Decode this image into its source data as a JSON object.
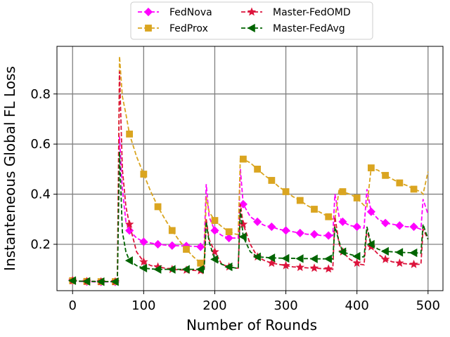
{
  "chart_data": {
    "type": "line",
    "title": "",
    "xlabel": "Number of Rounds",
    "ylabel": "Instanteneous Global FL Loss",
    "xlim": [
      -22,
      521
    ],
    "ylim": [
      0.015,
      0.99
    ],
    "xticks": [
      0,
      100,
      200,
      300,
      400,
      500
    ],
    "yticks": [
      0.2,
      0.4,
      0.6,
      0.8
    ],
    "xtick_labels": [
      "0",
      "100",
      "200",
      "300",
      "400",
      "500"
    ],
    "ytick_labels": [
      "0.2",
      "0.4",
      "0.6",
      "0.8"
    ],
    "grid": true,
    "legend": {
      "placement": "top-center",
      "ncol": 2
    },
    "series": [
      {
        "name": "FedNova",
        "color": "#ff00ff",
        "marker": "diamond",
        "dashed": true,
        "x": [
          0,
          5,
          10,
          15,
          20,
          25,
          30,
          35,
          40,
          45,
          50,
          55,
          60,
          63,
          66,
          70,
          75,
          80,
          90,
          100,
          110,
          120,
          130,
          140,
          150,
          160,
          170,
          180,
          185,
          188,
          192,
          200,
          210,
          220,
          230,
          233,
          236,
          240,
          250,
          260,
          270,
          280,
          290,
          300,
          310,
          320,
          330,
          340,
          350,
          360,
          366,
          369,
          375,
          380,
          390,
          400,
          405,
          410,
          414,
          420,
          430,
          440,
          450,
          460,
          470,
          480,
          490,
          493,
          500
        ],
        "y": [
          0.055,
          0.053,
          0.052,
          0.052,
          0.051,
          0.051,
          0.05,
          0.05,
          0.05,
          0.05,
          0.05,
          0.05,
          0.05,
          0.05,
          0.63,
          0.42,
          0.29,
          0.255,
          0.225,
          0.21,
          0.205,
          0.2,
          0.197,
          0.195,
          0.194,
          0.193,
          0.192,
          0.19,
          0.19,
          0.44,
          0.31,
          0.255,
          0.235,
          0.225,
          0.225,
          0.225,
          0.5,
          0.36,
          0.31,
          0.29,
          0.275,
          0.27,
          0.26,
          0.255,
          0.25,
          0.245,
          0.24,
          0.24,
          0.235,
          0.235,
          0.235,
          0.4,
          0.31,
          0.29,
          0.275,
          0.27,
          0.265,
          0.265,
          0.42,
          0.33,
          0.3,
          0.285,
          0.28,
          0.275,
          0.27,
          0.27,
          0.26,
          0.38,
          0.32
        ],
        "marker_x": [
          0,
          20,
          40,
          60,
          80,
          100,
          120,
          140,
          160,
          180,
          200,
          220,
          240,
          260,
          280,
          300,
          320,
          340,
          360,
          380,
          400,
          420,
          440,
          460,
          480
        ]
      },
      {
        "name": "FedProx",
        "color": "#daa520",
        "marker": "square",
        "dashed": true,
        "x": [
          0,
          10,
          20,
          30,
          40,
          50,
          60,
          63,
          66,
          70,
          75,
          80,
          90,
          100,
          110,
          120,
          130,
          140,
          150,
          160,
          170,
          180,
          185,
          188,
          192,
          200,
          210,
          220,
          230,
          233,
          236,
          240,
          250,
          260,
          270,
          280,
          290,
          300,
          310,
          320,
          330,
          340,
          350,
          360,
          366,
          369,
          375,
          380,
          390,
          400,
          405,
          410,
          414,
          420,
          430,
          440,
          450,
          460,
          470,
          480,
          490,
          493,
          500
        ],
        "y": [
          0.055,
          0.053,
          0.052,
          0.052,
          0.051,
          0.051,
          0.051,
          0.05,
          0.95,
          0.79,
          0.72,
          0.64,
          0.55,
          0.48,
          0.41,
          0.35,
          0.3,
          0.255,
          0.215,
          0.18,
          0.15,
          0.125,
          0.12,
          0.39,
          0.33,
          0.295,
          0.27,
          0.25,
          0.24,
          0.24,
          0.55,
          0.54,
          0.525,
          0.5,
          0.475,
          0.455,
          0.43,
          0.41,
          0.39,
          0.375,
          0.355,
          0.34,
          0.325,
          0.31,
          0.3,
          0.3,
          0.42,
          0.41,
          0.4,
          0.385,
          0.37,
          0.355,
          0.35,
          0.505,
          0.495,
          0.475,
          0.46,
          0.445,
          0.435,
          0.42,
          0.41,
          0.4,
          0.49
        ],
        "marker_x": [
          0,
          20,
          40,
          60,
          80,
          100,
          120,
          140,
          160,
          180,
          200,
          220,
          240,
          260,
          280,
          300,
          320,
          340,
          360,
          380,
          400,
          420,
          440,
          460,
          480
        ]
      },
      {
        "name": "Master-FedOMD",
        "color": "#dc143c",
        "marker": "star",
        "dashed": true,
        "x": [
          0,
          10,
          20,
          30,
          40,
          50,
          60,
          63,
          66,
          70,
          75,
          80,
          90,
          100,
          110,
          120,
          130,
          140,
          150,
          160,
          170,
          180,
          185,
          188,
          192,
          200,
          210,
          220,
          230,
          233,
          236,
          240,
          250,
          260,
          270,
          280,
          290,
          300,
          310,
          320,
          330,
          340,
          350,
          360,
          366,
          369,
          375,
          380,
          390,
          400,
          405,
          410,
          414,
          420,
          430,
          440,
          450,
          460,
          470,
          480,
          490,
          493,
          500
        ],
        "y": [
          0.055,
          0.053,
          0.052,
          0.052,
          0.051,
          0.051,
          0.051,
          0.05,
          0.89,
          0.5,
          0.35,
          0.28,
          0.17,
          0.13,
          0.115,
          0.11,
          0.105,
          0.1,
          0.098,
          0.097,
          0.096,
          0.095,
          0.095,
          0.3,
          0.22,
          0.17,
          0.12,
          0.11,
          0.105,
          0.105,
          0.36,
          0.28,
          0.2,
          0.15,
          0.135,
          0.125,
          0.12,
          0.115,
          0.11,
          0.108,
          0.106,
          0.105,
          0.103,
          0.102,
          0.1,
          0.31,
          0.2,
          0.17,
          0.14,
          0.125,
          0.12,
          0.118,
          0.26,
          0.19,
          0.16,
          0.14,
          0.13,
          0.125,
          0.122,
          0.12,
          0.12,
          0.26,
          0.22
        ],
        "marker_x": [
          0,
          20,
          40,
          60,
          80,
          100,
          120,
          140,
          160,
          180,
          200,
          220,
          240,
          260,
          280,
          300,
          320,
          340,
          360,
          380,
          400,
          420,
          440,
          460,
          480
        ]
      },
      {
        "name": "Master-FedAvg",
        "color": "#006400",
        "marker": "triangle-left",
        "dashed": true,
        "x": [
          0,
          10,
          20,
          30,
          40,
          50,
          60,
          63,
          66,
          70,
          75,
          80,
          90,
          100,
          110,
          120,
          130,
          140,
          150,
          160,
          170,
          180,
          185,
          188,
          192,
          200,
          210,
          220,
          230,
          233,
          236,
          240,
          250,
          260,
          270,
          280,
          290,
          300,
          310,
          320,
          330,
          340,
          350,
          360,
          366,
          369,
          375,
          380,
          390,
          400,
          405,
          410,
          414,
          420,
          430,
          440,
          450,
          460,
          470,
          480,
          490,
          493,
          500
        ],
        "y": [
          0.055,
          0.053,
          0.052,
          0.052,
          0.051,
          0.051,
          0.051,
          0.05,
          0.57,
          0.25,
          0.17,
          0.135,
          0.115,
          0.105,
          0.102,
          0.1,
          0.1,
          0.1,
          0.1,
          0.1,
          0.1,
          0.1,
          0.1,
          0.29,
          0.21,
          0.14,
          0.12,
          0.11,
          0.105,
          0.105,
          0.34,
          0.23,
          0.17,
          0.15,
          0.148,
          0.146,
          0.145,
          0.144,
          0.144,
          0.143,
          0.143,
          0.142,
          0.142,
          0.142,
          0.142,
          0.27,
          0.21,
          0.17,
          0.16,
          0.152,
          0.15,
          0.15,
          0.27,
          0.2,
          0.18,
          0.172,
          0.17,
          0.168,
          0.167,
          0.166,
          0.165,
          0.28,
          0.22
        ],
        "marker_x": [
          0,
          20,
          40,
          60,
          80,
          100,
          120,
          140,
          160,
          180,
          200,
          220,
          240,
          260,
          280,
          300,
          320,
          340,
          360,
          380,
          400,
          420,
          440,
          460,
          480
        ]
      }
    ]
  }
}
